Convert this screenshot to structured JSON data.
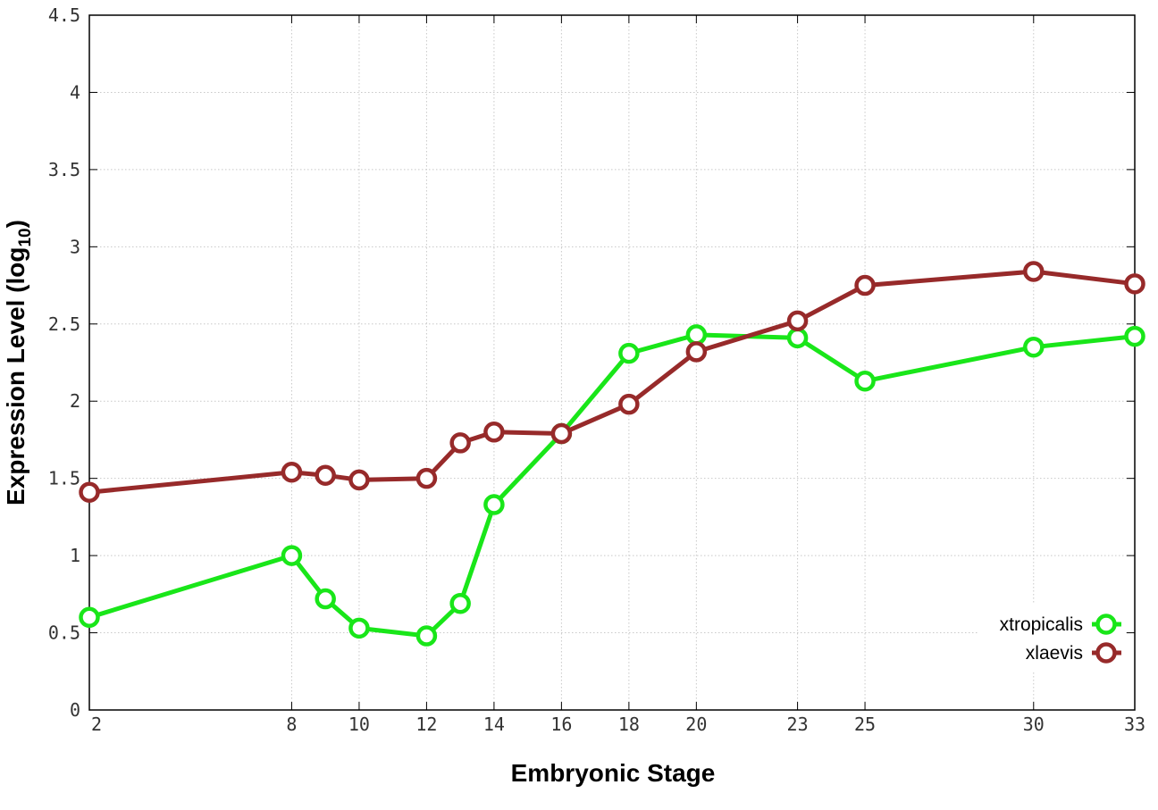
{
  "chart_data": {
    "type": "line",
    "title": "",
    "xlabel": "Embryonic Stage",
    "ylabel_main": "Expression Level (log",
    "ylabel_sub": "10",
    "ylabel_close": ")",
    "xlim": [
      2,
      33
    ],
    "ylim": [
      0,
      4.5
    ],
    "x_ticks": [
      2,
      8,
      10,
      12,
      14,
      16,
      18,
      20,
      23,
      25,
      30,
      33
    ],
    "x_tick_labels": [
      "2",
      "8",
      "10",
      "12",
      "14",
      "16",
      "18",
      "20",
      "23",
      "25",
      "30",
      "33"
    ],
    "y_ticks": [
      0,
      0.5,
      1,
      1.5,
      2,
      2.5,
      3,
      3.5,
      4,
      4.5
    ],
    "y_tick_labels": [
      "0",
      "0.5",
      "1",
      "1.5",
      "2",
      "2.5",
      "3",
      "3.5",
      "4",
      "4.5"
    ],
    "grid": true,
    "legend_position": "bottom-right",
    "x": [
      2,
      8,
      9,
      10,
      12,
      13,
      14,
      16,
      18,
      20,
      23,
      25,
      30,
      33
    ],
    "series": [
      {
        "name": "xtropicalis",
        "color": "#19e619",
        "values": [
          0.6,
          1.0,
          0.72,
          0.53,
          0.48,
          0.69,
          1.33,
          1.79,
          2.31,
          2.43,
          2.41,
          2.13,
          2.35,
          2.42
        ]
      },
      {
        "name": "xlaevis",
        "color": "#972a2a",
        "values": [
          1.41,
          1.54,
          1.52,
          1.49,
          1.5,
          1.73,
          1.8,
          1.79,
          1.98,
          2.32,
          2.52,
          2.75,
          2.84,
          2.76
        ]
      }
    ]
  }
}
